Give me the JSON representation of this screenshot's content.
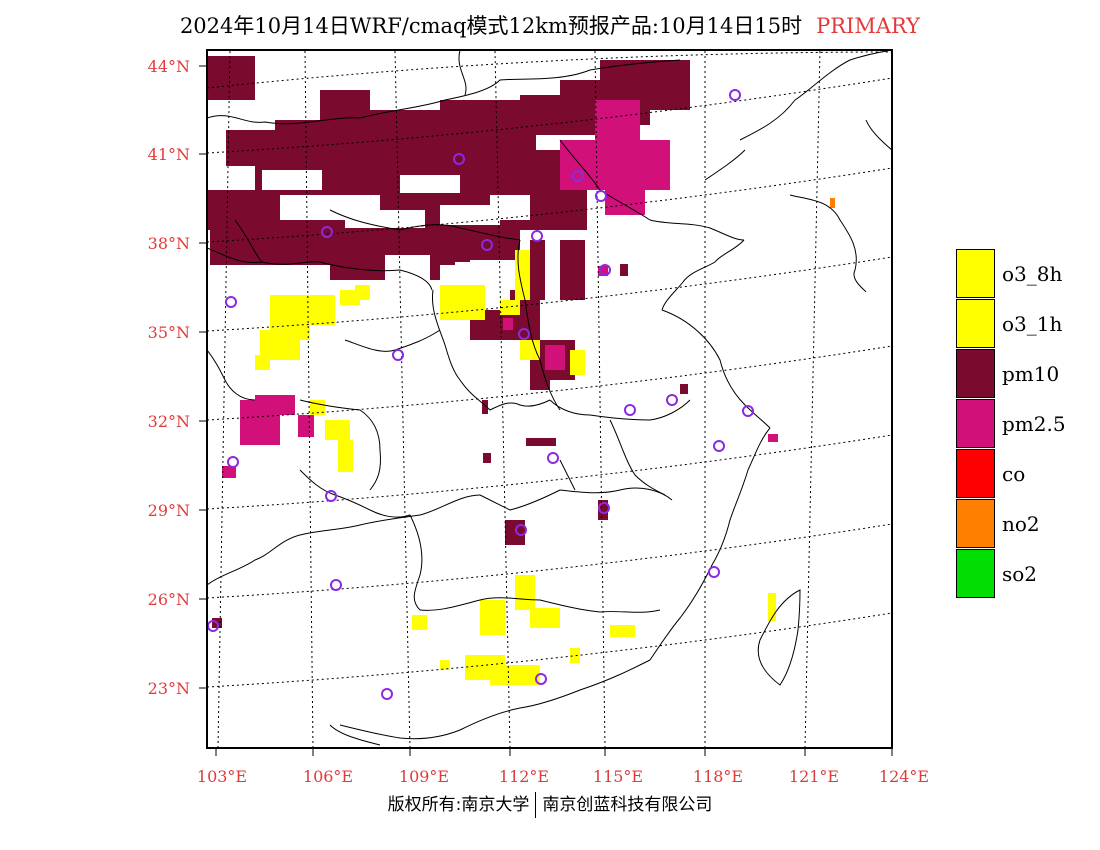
{
  "title": {
    "main": "2024年10月14日WRF/cmaq模式12km预报产品:10月14日15时",
    "tag": "PRIMARY"
  },
  "map": {
    "lat_labels": [
      "44°N",
      "41°N",
      "38°N",
      "35°N",
      "32°N",
      "29°N",
      "26°N",
      "23°N"
    ],
    "lon_labels": [
      "103°E",
      "106°E",
      "109°E",
      "112°E",
      "115°E",
      "118°E",
      "121°E",
      "124°E"
    ],
    "lat_values": [
      44,
      41,
      38,
      35,
      32,
      29,
      26,
      23
    ],
    "lon_values": [
      103,
      106,
      109,
      112,
      115,
      118,
      121,
      124
    ]
  },
  "legend": [
    {
      "label": "o3_8h",
      "color": "#ffff00"
    },
    {
      "label": "o3_1h",
      "color": "#ffff00"
    },
    {
      "label": "pm10",
      "color": "#7a0a2e"
    },
    {
      "label": "pm2.5",
      "color": "#d1107a"
    },
    {
      "label": "co",
      "color": "#ff0000"
    },
    {
      "label": "no2",
      "color": "#ff7f00"
    },
    {
      "label": "so2",
      "color": "#00dd00"
    }
  ],
  "colors": {
    "pm10": "#7a0a2e",
    "pm25": "#d1107a",
    "o3": "#ffff00",
    "no2": "#ff7f00",
    "station_marker": "#8a2be2",
    "axis_label": "#e23a3a"
  },
  "copyright": {
    "left": "版权所有:南京大学",
    "right": "南京创蓝科技有限公司"
  }
}
